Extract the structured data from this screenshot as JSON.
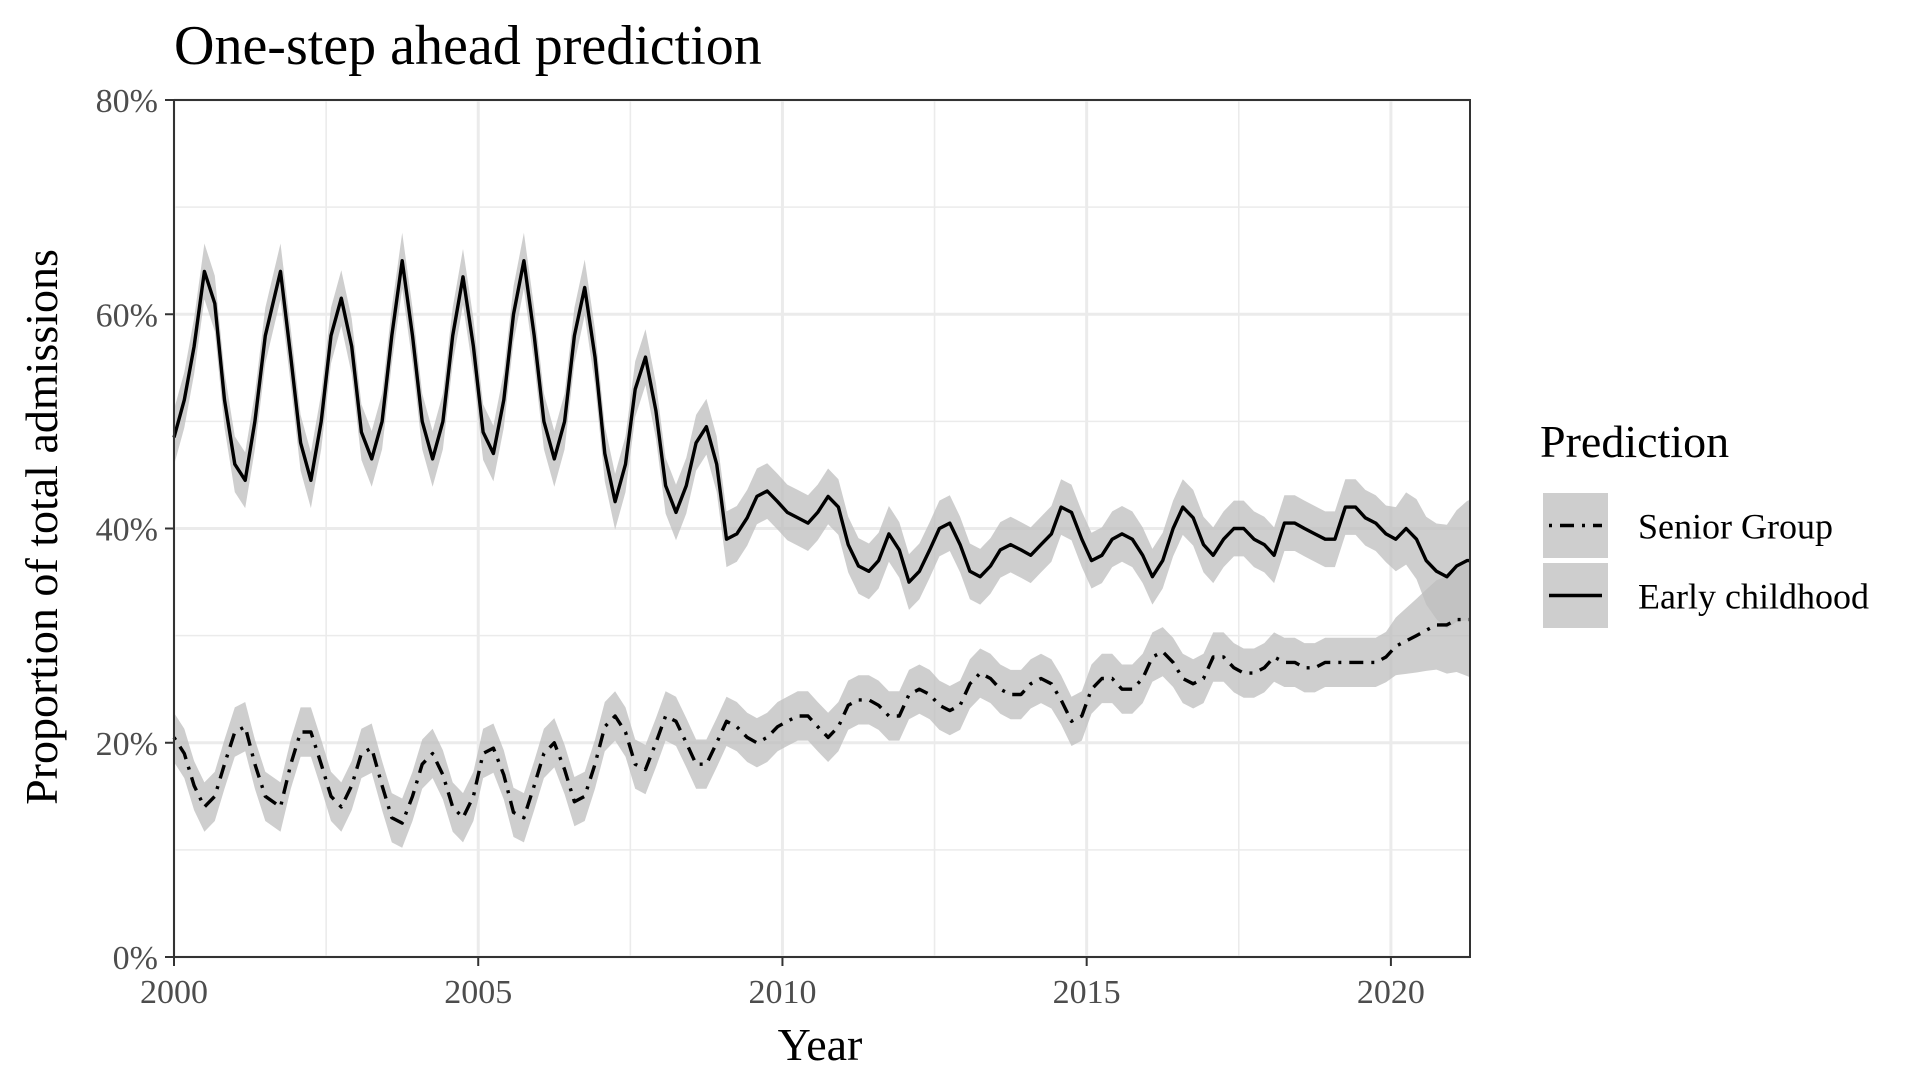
{
  "chart_data": {
    "type": "line",
    "title": "One-step ahead prediction",
    "xlabel": "Year",
    "ylabel": "Proportion of total admissions",
    "xlim": [
      2000,
      2021.3
    ],
    "ylim": [
      0,
      80
    ],
    "x_ticks": [
      2000,
      2005,
      2010,
      2015,
      2020
    ],
    "x_tick_labels": [
      "2000",
      "2005",
      "2010",
      "2015",
      "2020"
    ],
    "y_ticks": [
      0,
      20,
      40,
      60,
      80
    ],
    "y_tick_labels": [
      "0%",
      "20%",
      "40%",
      "60%",
      "80%"
    ],
    "grid": true,
    "legend": {
      "title": "Prediction",
      "position": "right",
      "entries": [
        "Senior Group",
        "Early childhood"
      ]
    },
    "colors": {
      "line": "#000000",
      "band": "#bdbdbd",
      "grid": "#ebebeb",
      "panel_border": "#333333"
    },
    "series": [
      {
        "name": "Early childhood",
        "linestyle": "solid",
        "points": [
          [
            2000.0,
            48.5
          ],
          [
            2000.17,
            52
          ],
          [
            2000.33,
            57
          ],
          [
            2000.5,
            64
          ],
          [
            2000.67,
            61
          ],
          [
            2000.83,
            52
          ],
          [
            2001.0,
            46
          ],
          [
            2001.17,
            44.5
          ],
          [
            2001.33,
            50
          ],
          [
            2001.5,
            58
          ],
          [
            2001.75,
            64
          ],
          [
            2001.92,
            56
          ],
          [
            2002.08,
            48
          ],
          [
            2002.25,
            44.5
          ],
          [
            2002.42,
            50
          ],
          [
            2002.58,
            58
          ],
          [
            2002.75,
            61.5
          ],
          [
            2002.92,
            57
          ],
          [
            2003.08,
            49
          ],
          [
            2003.25,
            46.5
          ],
          [
            2003.42,
            50
          ],
          [
            2003.58,
            58
          ],
          [
            2003.75,
            65
          ],
          [
            2003.92,
            58
          ],
          [
            2004.08,
            50
          ],
          [
            2004.25,
            46.5
          ],
          [
            2004.42,
            50
          ],
          [
            2004.58,
            58
          ],
          [
            2004.75,
            63.5
          ],
          [
            2004.92,
            57
          ],
          [
            2005.08,
            49
          ],
          [
            2005.25,
            47
          ],
          [
            2005.42,
            52
          ],
          [
            2005.58,
            60
          ],
          [
            2005.75,
            65
          ],
          [
            2005.92,
            58
          ],
          [
            2006.08,
            50
          ],
          [
            2006.25,
            46.5
          ],
          [
            2006.42,
            50
          ],
          [
            2006.58,
            58
          ],
          [
            2006.75,
            62.5
          ],
          [
            2006.92,
            56
          ],
          [
            2007.08,
            47
          ],
          [
            2007.25,
            42.5
          ],
          [
            2007.42,
            46
          ],
          [
            2007.58,
            53
          ],
          [
            2007.75,
            56
          ],
          [
            2007.92,
            51
          ],
          [
            2008.08,
            44
          ],
          [
            2008.25,
            41.5
          ],
          [
            2008.42,
            44
          ],
          [
            2008.58,
            48
          ],
          [
            2008.75,
            49.5
          ],
          [
            2008.92,
            46
          ],
          [
            2009.08,
            39
          ],
          [
            2009.25,
            39.5
          ],
          [
            2009.42,
            41
          ],
          [
            2009.58,
            43
          ],
          [
            2009.75,
            43.5
          ],
          [
            2009.92,
            42.5
          ],
          [
            2010.08,
            41.5
          ],
          [
            2010.25,
            41
          ],
          [
            2010.42,
            40.5
          ],
          [
            2010.58,
            41.5
          ],
          [
            2010.75,
            43
          ],
          [
            2010.92,
            42
          ],
          [
            2011.08,
            38.5
          ],
          [
            2011.25,
            36.5
          ],
          [
            2011.42,
            36
          ],
          [
            2011.58,
            37
          ],
          [
            2011.75,
            39.5
          ],
          [
            2011.92,
            38
          ],
          [
            2012.08,
            35
          ],
          [
            2012.25,
            36
          ],
          [
            2012.42,
            38
          ],
          [
            2012.58,
            40
          ],
          [
            2012.75,
            40.5
          ],
          [
            2012.92,
            38.5
          ],
          [
            2013.08,
            36
          ],
          [
            2013.25,
            35.5
          ],
          [
            2013.42,
            36.5
          ],
          [
            2013.58,
            38
          ],
          [
            2013.75,
            38.5
          ],
          [
            2013.92,
            38
          ],
          [
            2014.08,
            37.5
          ],
          [
            2014.25,
            38.5
          ],
          [
            2014.42,
            39.5
          ],
          [
            2014.58,
            42
          ],
          [
            2014.75,
            41.5
          ],
          [
            2014.92,
            39
          ],
          [
            2015.08,
            37
          ],
          [
            2015.25,
            37.5
          ],
          [
            2015.42,
            39
          ],
          [
            2015.58,
            39.5
          ],
          [
            2015.75,
            39
          ],
          [
            2015.92,
            37.5
          ],
          [
            2016.08,
            35.5
          ],
          [
            2016.25,
            37
          ],
          [
            2016.42,
            40
          ],
          [
            2016.58,
            42
          ],
          [
            2016.75,
            41
          ],
          [
            2016.92,
            38.5
          ],
          [
            2017.08,
            37.5
          ],
          [
            2017.25,
            39
          ],
          [
            2017.42,
            40
          ],
          [
            2017.58,
            40
          ],
          [
            2017.75,
            39
          ],
          [
            2017.92,
            38.5
          ],
          [
            2018.08,
            37.5
          ],
          [
            2018.25,
            40.5
          ],
          [
            2018.42,
            40.5
          ],
          [
            2018.58,
            40
          ],
          [
            2018.75,
            39.5
          ],
          [
            2018.92,
            39
          ],
          [
            2019.08,
            39
          ],
          [
            2019.25,
            42
          ],
          [
            2019.42,
            42
          ],
          [
            2019.58,
            41
          ],
          [
            2019.75,
            40.5
          ],
          [
            2019.92,
            39.5
          ],
          [
            2020.08,
            39
          ],
          [
            2020.25,
            40
          ],
          [
            2020.42,
            39
          ],
          [
            2020.58,
            37
          ],
          [
            2020.75,
            36
          ],
          [
            2020.92,
            35.5
          ],
          [
            2021.08,
            36.5
          ],
          [
            2021.25,
            37
          ],
          [
            2021.3,
            37
          ]
        ]
      },
      {
        "name": "Senior Group",
        "linestyle": "dotdash",
        "points": [
          [
            2000.0,
            20.5
          ],
          [
            2000.17,
            19
          ],
          [
            2000.33,
            16
          ],
          [
            2000.5,
            14
          ],
          [
            2000.67,
            15
          ],
          [
            2000.83,
            18
          ],
          [
            2001.0,
            21
          ],
          [
            2001.17,
            21.5
          ],
          [
            2001.33,
            18
          ],
          [
            2001.5,
            15
          ],
          [
            2001.75,
            14
          ],
          [
            2001.92,
            18
          ],
          [
            2002.08,
            21
          ],
          [
            2002.25,
            21
          ],
          [
            2002.42,
            18
          ],
          [
            2002.58,
            15
          ],
          [
            2002.75,
            14
          ],
          [
            2002.92,
            16
          ],
          [
            2003.08,
            19
          ],
          [
            2003.25,
            19.5
          ],
          [
            2003.42,
            16
          ],
          [
            2003.58,
            13
          ],
          [
            2003.75,
            12.5
          ],
          [
            2003.92,
            15
          ],
          [
            2004.08,
            18
          ],
          [
            2004.25,
            19
          ],
          [
            2004.42,
            17
          ],
          [
            2004.58,
            14
          ],
          [
            2004.75,
            13
          ],
          [
            2004.92,
            15
          ],
          [
            2005.08,
            19
          ],
          [
            2005.25,
            19.5
          ],
          [
            2005.42,
            17
          ],
          [
            2005.58,
            13.5
          ],
          [
            2005.75,
            13
          ],
          [
            2005.92,
            16
          ],
          [
            2006.08,
            19
          ],
          [
            2006.25,
            20
          ],
          [
            2006.42,
            17.5
          ],
          [
            2006.58,
            14.5
          ],
          [
            2006.75,
            15
          ],
          [
            2006.92,
            18
          ],
          [
            2007.08,
            21.5
          ],
          [
            2007.25,
            22.5
          ],
          [
            2007.42,
            21
          ],
          [
            2007.58,
            18
          ],
          [
            2007.75,
            17.5
          ],
          [
            2007.92,
            20
          ],
          [
            2008.08,
            22.5
          ],
          [
            2008.25,
            22
          ],
          [
            2008.42,
            20
          ],
          [
            2008.58,
            18
          ],
          [
            2008.75,
            18
          ],
          [
            2008.92,
            20
          ],
          [
            2009.08,
            22
          ],
          [
            2009.25,
            21.5
          ],
          [
            2009.42,
            20.5
          ],
          [
            2009.58,
            20
          ],
          [
            2009.75,
            20.5
          ],
          [
            2009.92,
            21.5
          ],
          [
            2010.08,
            22
          ],
          [
            2010.25,
            22.5
          ],
          [
            2010.42,
            22.5
          ],
          [
            2010.58,
            21.5
          ],
          [
            2010.75,
            20.5
          ],
          [
            2010.92,
            21.5
          ],
          [
            2011.08,
            23.5
          ],
          [
            2011.25,
            24
          ],
          [
            2011.42,
            24
          ],
          [
            2011.58,
            23.5
          ],
          [
            2011.75,
            22.5
          ],
          [
            2011.92,
            22.5
          ],
          [
            2012.08,
            24.5
          ],
          [
            2012.25,
            25
          ],
          [
            2012.42,
            24.5
          ],
          [
            2012.58,
            23.5
          ],
          [
            2012.75,
            23
          ],
          [
            2012.92,
            23.5
          ],
          [
            2013.08,
            25.5
          ],
          [
            2013.25,
            26.5
          ],
          [
            2013.42,
            26
          ],
          [
            2013.58,
            25
          ],
          [
            2013.75,
            24.5
          ],
          [
            2013.92,
            24.5
          ],
          [
            2014.08,
            25.5
          ],
          [
            2014.25,
            26
          ],
          [
            2014.42,
            25.5
          ],
          [
            2014.58,
            24
          ],
          [
            2014.75,
            22
          ],
          [
            2014.92,
            22.5
          ],
          [
            2015.08,
            25
          ],
          [
            2015.25,
            26
          ],
          [
            2015.42,
            26
          ],
          [
            2015.58,
            25
          ],
          [
            2015.75,
            25
          ],
          [
            2015.92,
            26
          ],
          [
            2016.08,
            28
          ],
          [
            2016.25,
            28.5
          ],
          [
            2016.42,
            27.5
          ],
          [
            2016.58,
            26
          ],
          [
            2016.75,
            25.5
          ],
          [
            2016.92,
            26
          ],
          [
            2017.08,
            28
          ],
          [
            2017.25,
            28
          ],
          [
            2017.42,
            27
          ],
          [
            2017.58,
            26.5
          ],
          [
            2017.75,
            26.5
          ],
          [
            2017.92,
            27
          ],
          [
            2018.08,
            28
          ],
          [
            2018.25,
            27.5
          ],
          [
            2018.42,
            27.5
          ],
          [
            2018.58,
            27
          ],
          [
            2018.75,
            27
          ],
          [
            2018.92,
            27.5
          ],
          [
            2019.08,
            27.5
          ],
          [
            2019.25,
            27.5
          ],
          [
            2019.42,
            27.5
          ],
          [
            2019.58,
            27.5
          ],
          [
            2019.75,
            27.5
          ],
          [
            2019.92,
            28
          ],
          [
            2020.08,
            29
          ],
          [
            2020.25,
            29.5
          ],
          [
            2020.42,
            30
          ],
          [
            2020.58,
            30.5
          ],
          [
            2020.75,
            31
          ],
          [
            2020.92,
            31
          ],
          [
            2021.08,
            31.5
          ],
          [
            2021.25,
            31.5
          ],
          [
            2021.3,
            31.5
          ]
        ]
      }
    ]
  }
}
